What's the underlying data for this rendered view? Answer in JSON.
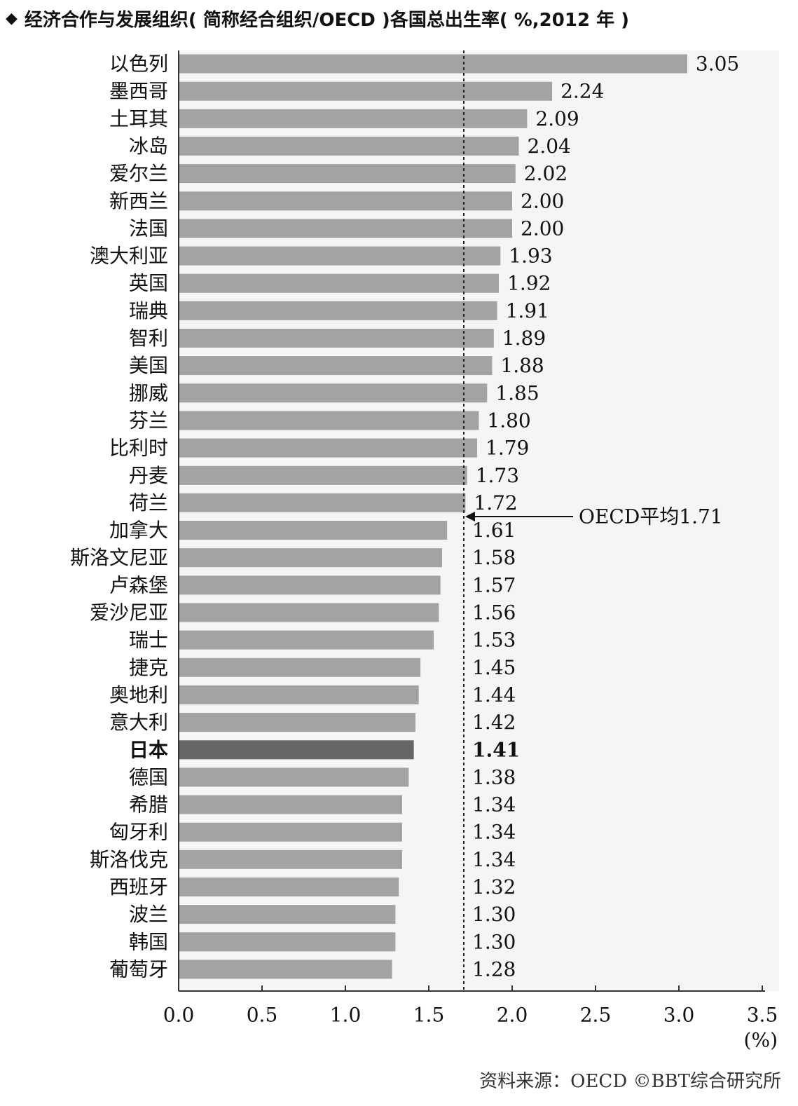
{
  "title": "经济合作与发展组织( 简称经合组织/OECD )各国总出生率( %,2012 年 )",
  "title_bullet": "◆",
  "source": "资料来源：OECD ©BBT综合研究所",
  "chart_data": {
    "type": "bar",
    "orientation": "horizontal",
    "title": "经济合作与发展组织( 简称经合组织/OECD )各国总出生率( %,2012 年 )",
    "unit_label": "(%)",
    "xlim": [
      0,
      3.5
    ],
    "x_ticks": [
      "0.0",
      "0.5",
      "1.0",
      "1.5",
      "2.0",
      "2.5",
      "3.0",
      "3.5"
    ],
    "grid": false,
    "highlight": "日本",
    "colors": {
      "bar": "#a3a3a3",
      "highlight": "#666666",
      "axis": "#333333",
      "reference_line": "#222222",
      "plot_bg": "#f5f5f5"
    },
    "reference_line": {
      "value": 1.71,
      "label": "OECD平均1.71"
    },
    "categories": [
      "以色列",
      "墨西哥",
      "土耳其",
      "冰岛",
      "爱尔兰",
      "新西兰",
      "法国",
      "澳大利亚",
      "英国",
      "瑞典",
      "智利",
      "美国",
      "挪威",
      "芬兰",
      "比利时",
      "丹麦",
      "荷兰",
      "加拿大",
      "斯洛文尼亚",
      "卢森堡",
      "爱沙尼亚",
      "瑞士",
      "捷克",
      "奥地利",
      "意大利",
      "日本",
      "德国",
      "希腊",
      "匈牙利",
      "斯洛伐克",
      "西班牙",
      "波兰",
      "韩国",
      "葡萄牙"
    ],
    "values": [
      3.05,
      2.24,
      2.09,
      2.04,
      2.02,
      2.0,
      2.0,
      1.93,
      1.92,
      1.91,
      1.89,
      1.88,
      1.85,
      1.8,
      1.79,
      1.73,
      1.72,
      1.61,
      1.58,
      1.57,
      1.56,
      1.53,
      1.45,
      1.44,
      1.42,
      1.41,
      1.38,
      1.34,
      1.34,
      1.34,
      1.32,
      1.3,
      1.3,
      1.28
    ],
    "value_labels": [
      "3.05",
      "2.24",
      "2.09",
      "2.04",
      "2.02",
      "2.00",
      "2.00",
      "1.93",
      "1.92",
      "1.91",
      "1.89",
      "1.88",
      "1.85",
      "1.80",
      "1.79",
      "1.73",
      "1.72",
      "1.61",
      "1.58",
      "1.57",
      "1.56",
      "1.53",
      "1.45",
      "1.44",
      "1.42",
      "1.41",
      "1.38",
      "1.34",
      "1.34",
      "1.34",
      "1.32",
      "1.30",
      "1.30",
      "1.28"
    ]
  }
}
